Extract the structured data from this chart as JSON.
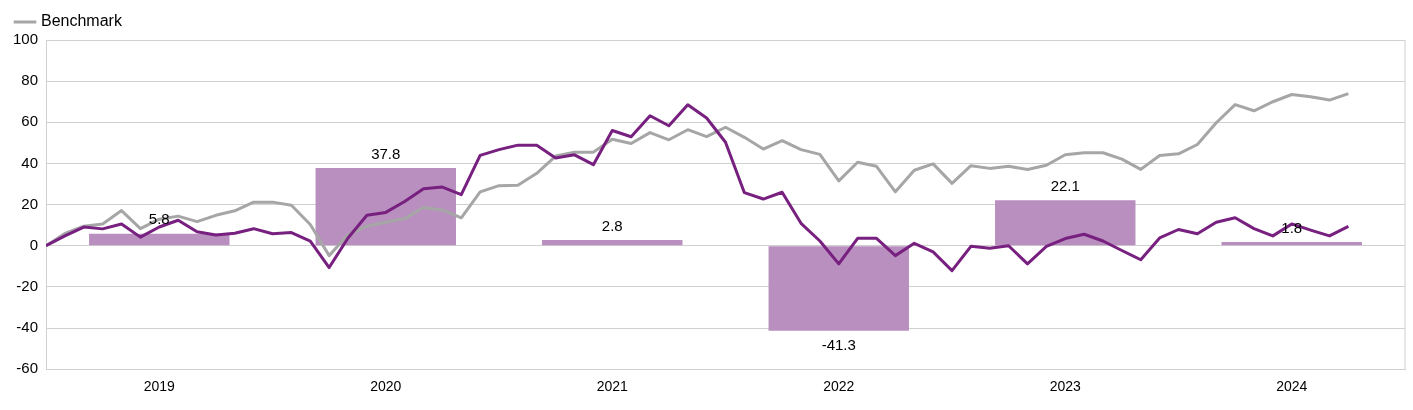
{
  "chart_data": {
    "type": "bar",
    "xlim": [
      "2018-12",
      "2024-12"
    ],
    "xticks": [
      {
        "value": "2019-06",
        "label": "2019"
      },
      {
        "value": "2020-06",
        "label": "2020"
      },
      {
        "value": "2021-06",
        "label": "2021"
      },
      {
        "value": "2022-06",
        "label": "2022"
      },
      {
        "value": "2023-06",
        "label": "2023"
      },
      {
        "value": "2024-06",
        "label": "2024"
      }
    ],
    "ylim": [
      -60,
      100
    ],
    "yticks": [
      -60,
      -40,
      -20,
      0,
      20,
      40,
      60,
      80,
      100
    ],
    "grid": "y",
    "legend": "top left",
    "series": [
      {
        "color": "#b88fbf",
        "x": [
          "2019-06",
          "2020-06",
          "2021-06",
          "2022-06",
          "2023-06",
          "2024-06"
        ],
        "values": [
          5.8,
          37.8,
          2.8,
          -41.3,
          22.1,
          1.8
        ],
        "value_labels": [
          "5.8",
          "37.8",
          "2.8",
          "-41.3",
          "22.1",
          "1.8"
        ]
      },
      {
        "type": "line",
        "color": "#77207f",
        "x": [
          "2018-12",
          "2019-01",
          "2019-02",
          "2019-03",
          "2019-04",
          "2019-05",
          "2019-06",
          "2019-07",
          "2019-08",
          "2019-09",
          "2019-10",
          "2019-11",
          "2019-12",
          "2020-01",
          "2020-02",
          "2020-03",
          "2020-04",
          "2020-05",
          "2020-06",
          "2020-07",
          "2020-08",
          "2020-09",
          "2020-10",
          "2020-11",
          "2020-12",
          "2021-01",
          "2021-02",
          "2021-03",
          "2021-04",
          "2021-05",
          "2021-06",
          "2021-07",
          "2021-08",
          "2021-09",
          "2021-10",
          "2021-11",
          "2021-12",
          "2022-01",
          "2022-02",
          "2022-03",
          "2022-04",
          "2022-05",
          "2022-06",
          "2022-07",
          "2022-08",
          "2022-09",
          "2022-10",
          "2022-11",
          "2022-12",
          "2023-01",
          "2023-02",
          "2023-03",
          "2023-04",
          "2023-05",
          "2023-06",
          "2023-07",
          "2023-08",
          "2023-09",
          "2023-10",
          "2023-11",
          "2023-12",
          "2024-01",
          "2024-02",
          "2024-03",
          "2024-04",
          "2024-05",
          "2024-06",
          "2024-07",
          "2024-08",
          "2024-09"
        ],
        "values": [
          0,
          4.8,
          9.1,
          8.2,
          10.6,
          4.2,
          9.1,
          12.4,
          6.8,
          5.2,
          6.1,
          8.3,
          5.8,
          6.4,
          2.3,
          -10.6,
          3.8,
          14.8,
          16.2,
          21.5,
          27.7,
          28.5,
          24.8,
          43.9,
          46.7,
          48.9,
          48.8,
          42.7,
          44.2,
          39.4,
          56,
          53,
          63.2,
          58.3,
          68.5,
          62.1,
          50.3,
          25.8,
          22.7,
          26,
          10.9,
          2.3,
          -8.8,
          3.6,
          3.6,
          -4.8,
          1.2,
          -3,
          -12.1,
          -0.3,
          -1.2,
          0,
          -8.8,
          -0.3,
          3.5,
          5.6,
          2.3,
          -2.3,
          -6.8,
          3.8,
          7.9,
          5.8,
          11.4,
          13.6,
          8.3,
          4.8,
          10.6,
          7.6,
          4.8,
          9.4
        ]
      },
      {
        "type": "line",
        "name": "Benchmark",
        "color": "#a6a6a6",
        "x": [
          "2018-12",
          "2019-01",
          "2019-02",
          "2019-03",
          "2019-04",
          "2019-05",
          "2019-06",
          "2019-07",
          "2019-08",
          "2019-09",
          "2019-10",
          "2019-11",
          "2019-12",
          "2020-01",
          "2020-02",
          "2020-03",
          "2020-04",
          "2020-05",
          "2020-06",
          "2020-07",
          "2020-08",
          "2020-09",
          "2020-10",
          "2020-11",
          "2020-12",
          "2021-01",
          "2021-02",
          "2021-03",
          "2021-04",
          "2021-05",
          "2021-06",
          "2021-07",
          "2021-08",
          "2021-09",
          "2021-10",
          "2021-11",
          "2021-12",
          "2022-01",
          "2022-02",
          "2022-03",
          "2022-04",
          "2022-05",
          "2022-06",
          "2022-07",
          "2022-08",
          "2022-09",
          "2022-10",
          "2022-11",
          "2022-12",
          "2023-01",
          "2023-02",
          "2023-03",
          "2023-04",
          "2023-05",
          "2023-06",
          "2023-07",
          "2023-08",
          "2023-09",
          "2023-10",
          "2023-11",
          "2023-12",
          "2024-01",
          "2024-02",
          "2024-03",
          "2024-04",
          "2024-05",
          "2024-06",
          "2024-07",
          "2024-08",
          "2024-09"
        ],
        "values": [
          0,
          6,
          9.5,
          10.6,
          17.1,
          8.3,
          12.9,
          14.4,
          11.7,
          14.8,
          17,
          21.2,
          21.2,
          19.7,
          10.3,
          -4.8,
          5.3,
          9.5,
          11.4,
          13.2,
          18.6,
          17.4,
          13.6,
          26.2,
          29.2,
          29.4,
          35.2,
          43.6,
          45.5,
          45.5,
          51.8,
          49.7,
          55,
          51.5,
          56.4,
          53,
          57.6,
          52.7,
          47,
          51.1,
          46.7,
          44.4,
          31.5,
          40.6,
          38.6,
          26.2,
          36.7,
          39.8,
          30.3,
          38.9,
          37.6,
          38.6,
          37.1,
          39.1,
          44.2,
          45.2,
          45.2,
          42.1,
          37.1,
          43.9,
          44.7,
          49.2,
          59.8,
          68.6,
          65.6,
          70,
          73.5,
          72.4,
          70.8,
          73.9
        ]
      }
    ]
  }
}
